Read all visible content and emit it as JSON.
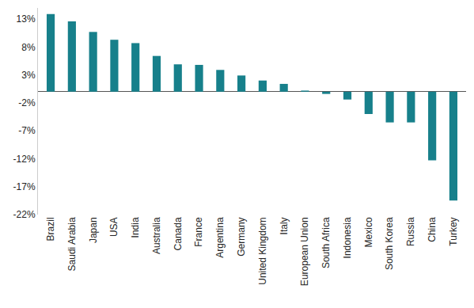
{
  "chart_data": {
    "type": "bar",
    "categories": [
      "Brazil",
      "Saudi Arabia",
      "Japan",
      "USA",
      "India",
      "Australia",
      "Canada",
      "France",
      "Argentina",
      "Germany",
      "United Kingdom",
      "Italy",
      "European Union",
      "South Africa",
      "Indonesia",
      "Mexico",
      "South Korea",
      "Russia",
      "China",
      "Turkey"
    ],
    "values": [
      13.9,
      12.6,
      10.7,
      9.3,
      8.7,
      6.4,
      4.9,
      4.8,
      3.9,
      2.9,
      2.0,
      1.4,
      0.2,
      -0.4,
      -1.4,
      -4.0,
      -5.5,
      -5.5,
      -12.3,
      -19.5
    ],
    "color": "#17808b",
    "ylim": [
      -22,
      15
    ],
    "yticks": [
      {
        "value": 13,
        "label": "13%"
      },
      {
        "value": 8,
        "label": "8%"
      },
      {
        "value": 3,
        "label": "3%"
      },
      {
        "value": -2,
        "label": "-2%"
      },
      {
        "value": -7,
        "label": "-7%"
      },
      {
        "value": -12,
        "label": "-12%"
      },
      {
        "value": -17,
        "label": "-17%"
      },
      {
        "value": -22,
        "label": "-22%"
      }
    ],
    "grid": false
  }
}
